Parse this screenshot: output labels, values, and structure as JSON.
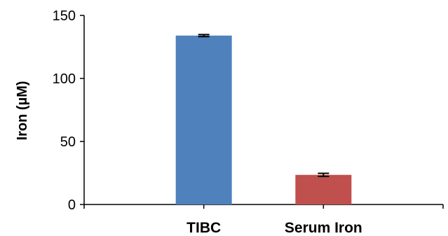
{
  "chart_data": {
    "type": "bar",
    "categories": [
      "TIBC",
      "Serum Iron"
    ],
    "values": [
      134,
      23.5
    ],
    "errors": [
      0.8,
      1.2
    ],
    "colors": [
      "#4f81bd",
      "#c0504d"
    ],
    "xlabel": "",
    "ylabel": "Iron (µM)",
    "ylim": [
      0,
      150
    ],
    "yticks": [
      0,
      50,
      100,
      150
    ],
    "ytick_labels": [
      "0",
      "50",
      "100",
      "150"
    ],
    "grid": false,
    "legend": "none"
  }
}
